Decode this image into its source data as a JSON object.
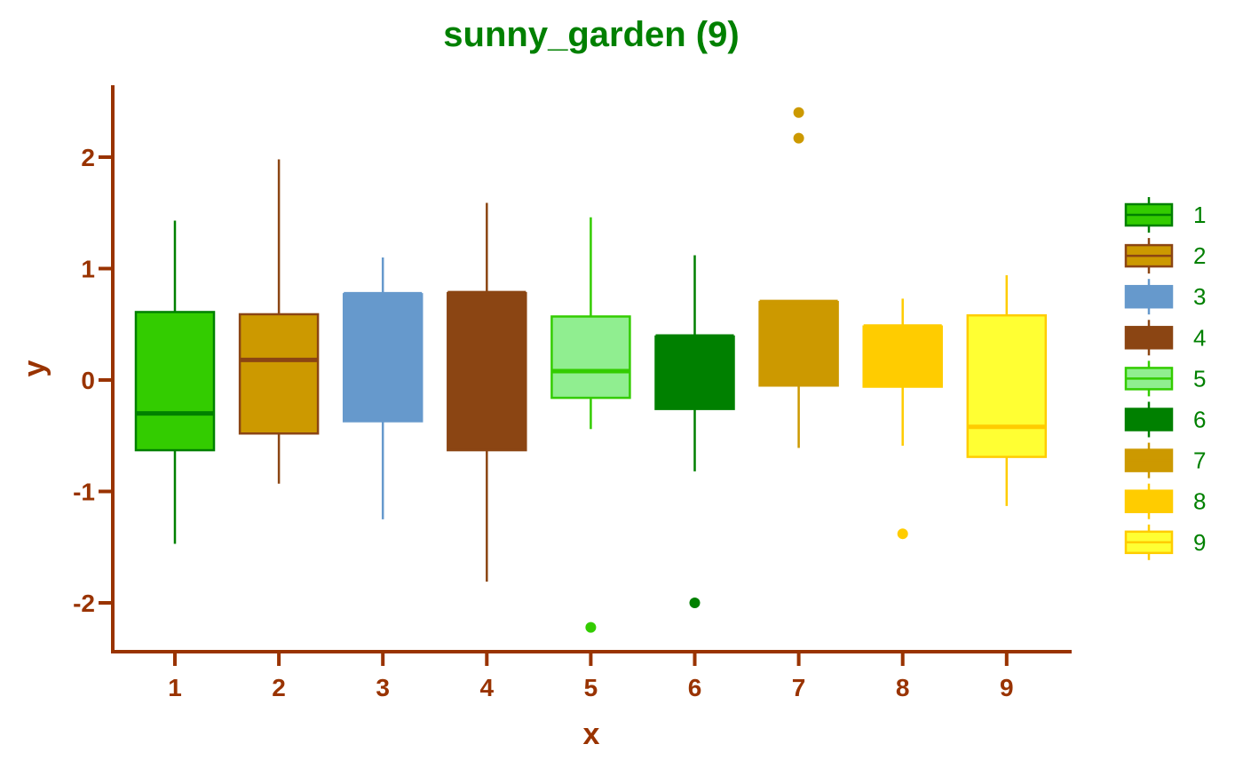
{
  "chart_data": {
    "type": "boxplot",
    "title": "sunny_garden (9)",
    "xlabel": "x",
    "ylabel": "y",
    "ylim": [
      -2.45,
      2.65
    ],
    "y_ticks": [
      -2,
      -1,
      0,
      1,
      2
    ],
    "y_tick_labels": [
      "-2",
      "-1",
      "0",
      "1",
      "2"
    ],
    "categories": [
      "1",
      "2",
      "3",
      "4",
      "5",
      "6",
      "7",
      "8",
      "9"
    ],
    "grid": false,
    "legend_placement": "right",
    "colors": {
      "title": "#008000",
      "axis": "#993300",
      "legend_text": "#008000"
    },
    "boxes": [
      {
        "name": "1",
        "fill": "#33CC00",
        "edge": "#008000",
        "whisker_low": -1.47,
        "q1": -0.63,
        "median": -0.3,
        "q3": 0.61,
        "whisker_high": 1.43,
        "outliers": []
      },
      {
        "name": "2",
        "fill": "#CC9900",
        "edge": "#8B4513",
        "whisker_low": -0.93,
        "q1": -0.48,
        "median": 0.18,
        "q3": 0.59,
        "whisker_high": 1.98,
        "outliers": []
      },
      {
        "name": "3",
        "fill": "#6699CC",
        "edge": "#6699CC",
        "whisker_low": -1.25,
        "q1": -0.37,
        "median": 0.77,
        "q3": 0.77,
        "whisker_high": 1.1,
        "outliers": []
      },
      {
        "name": "4",
        "fill": "#8B4513",
        "edge": "#8B4513",
        "whisker_low": -1.81,
        "q1": -0.63,
        "median": 0.78,
        "q3": 0.78,
        "whisker_high": 1.59,
        "outliers": []
      },
      {
        "name": "5",
        "fill": "#90EE90",
        "edge": "#33CC00",
        "whisker_low": -0.44,
        "q1": -0.16,
        "median": 0.08,
        "q3": 0.57,
        "whisker_high": 1.46,
        "outliers": [
          -2.22
        ]
      },
      {
        "name": "6",
        "fill": "#008000",
        "edge": "#008000",
        "whisker_low": -0.82,
        "q1": -0.26,
        "median": 0.39,
        "q3": 0.39,
        "whisker_high": 1.12,
        "outliers": [
          -2.0
        ]
      },
      {
        "name": "7",
        "fill": "#CC9900",
        "edge": "#CC9900",
        "whisker_low": -0.61,
        "q1": -0.05,
        "median": 0.7,
        "q3": 0.7,
        "whisker_high": 0.7,
        "outliers": [
          2.17,
          2.4
        ]
      },
      {
        "name": "8",
        "fill": "#FFCC00",
        "edge": "#FFCC00",
        "whisker_low": -0.59,
        "q1": -0.06,
        "median": 0.48,
        "q3": 0.48,
        "whisker_high": 0.73,
        "outliers": [
          -1.38
        ]
      },
      {
        "name": "9",
        "fill": "#FFFF33",
        "edge": "#FFCC00",
        "whisker_low": -1.13,
        "q1": -0.69,
        "median": -0.42,
        "q3": 0.58,
        "whisker_high": 0.94,
        "outliers": []
      }
    ]
  }
}
